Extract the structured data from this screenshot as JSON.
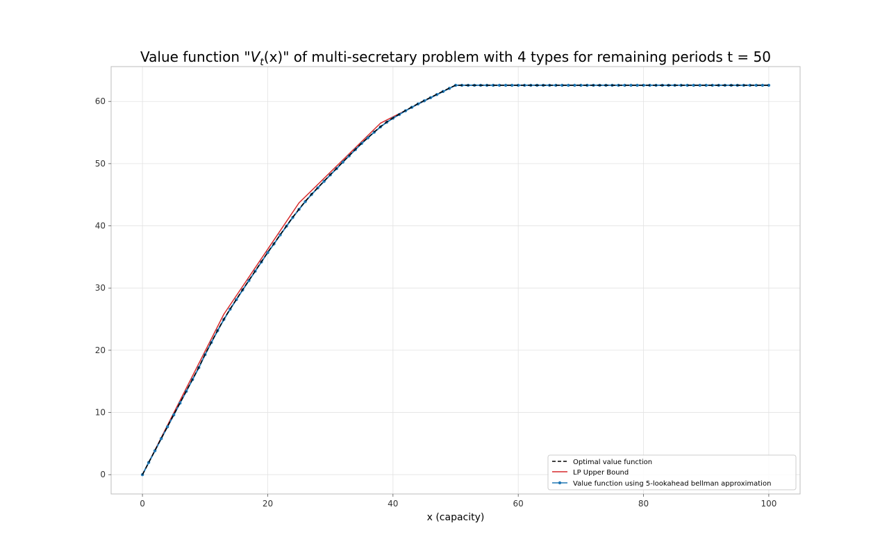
{
  "chart_data": {
    "type": "line",
    "title_parts": {
      "prefix": "Value function \"",
      "var": "V",
      "sub": "t",
      "arg": "(x)",
      "suffix": "\" of multi-secretary problem with 4 types for remaining periods t = 50"
    },
    "xlabel": "x (capacity)",
    "ylabel": "",
    "xlim": [
      -5,
      105
    ],
    "ylim": [
      -3.1,
      65.6
    ],
    "xticks": [
      0,
      20,
      40,
      60,
      80,
      100
    ],
    "yticks": [
      0,
      10,
      20,
      30,
      40,
      50,
      60
    ],
    "grid": true,
    "legend_position": "lower-right",
    "colors": {
      "optimal": "#000000",
      "lp": "#d62728",
      "lookahead": "#1f77b4"
    },
    "series": [
      {
        "name": "Optimal value function",
        "style": "dashed",
        "x": [
          0,
          1,
          2,
          3,
          4,
          5,
          6,
          7,
          8,
          9,
          10,
          11,
          12,
          13,
          14,
          15,
          16,
          17,
          18,
          19,
          20,
          21,
          22,
          23,
          24,
          25,
          26,
          27,
          28,
          29,
          30,
          31,
          32,
          33,
          34,
          35,
          36,
          37,
          38,
          39,
          40,
          41,
          42,
          43,
          44,
          45,
          46,
          47,
          48,
          49,
          50,
          51,
          52,
          53,
          54,
          55,
          56,
          57,
          58,
          59,
          60,
          61,
          62,
          63,
          64,
          65,
          66,
          67,
          68,
          69,
          70,
          71,
          72,
          73,
          74,
          75,
          76,
          77,
          78,
          79,
          80,
          81,
          82,
          83,
          84,
          85,
          86,
          87,
          88,
          89,
          90,
          91,
          92,
          93,
          94,
          95,
          96,
          97,
          98,
          99,
          100
        ],
        "values": [
          0,
          1.95,
          3.9,
          5.82,
          7.74,
          9.65,
          11.55,
          13.45,
          15.35,
          17.25,
          19.35,
          21.3,
          23.2,
          25.0,
          26.65,
          28.2,
          29.75,
          31.25,
          32.75,
          34.25,
          35.75,
          37.15,
          38.6,
          40.0,
          41.4,
          42.7,
          43.95,
          45.1,
          46.15,
          47.2,
          48.25,
          49.25,
          50.3,
          51.3,
          52.3,
          53.3,
          54.2,
          55.1,
          55.95,
          56.7,
          57.35,
          57.95,
          58.55,
          59.1,
          59.65,
          60.15,
          60.65,
          61.15,
          61.65,
          62.15,
          62.6,
          62.6,
          62.6,
          62.6,
          62.6,
          62.6,
          62.6,
          62.6,
          62.6,
          62.6,
          62.6,
          62.6,
          62.6,
          62.6,
          62.6,
          62.6,
          62.6,
          62.6,
          62.6,
          62.6,
          62.6,
          62.6,
          62.6,
          62.6,
          62.6,
          62.6,
          62.6,
          62.6,
          62.6,
          62.6,
          62.6,
          62.6,
          62.6,
          62.6,
          62.6,
          62.6,
          62.6,
          62.6,
          62.6,
          62.6,
          62.6,
          62.6,
          62.6,
          62.6,
          62.6,
          62.6,
          62.6,
          62.6,
          62.6,
          62.6,
          62.6
        ]
      },
      {
        "name": "LP Upper Bound",
        "style": "solid",
        "x": [
          0,
          13,
          25,
          38,
          50,
          100
        ],
        "values": [
          0,
          25.8,
          43.7,
          56.5,
          62.6,
          62.6
        ]
      },
      {
        "name": "Value function using 5-lookahead bellman approximation",
        "style": "solid-markers",
        "x": [
          0,
          1,
          2,
          3,
          4,
          5,
          6,
          7,
          8,
          9,
          10,
          11,
          12,
          13,
          14,
          15,
          16,
          17,
          18,
          19,
          20,
          21,
          22,
          23,
          24,
          25,
          26,
          27,
          28,
          29,
          30,
          31,
          32,
          33,
          34,
          35,
          36,
          37,
          38,
          39,
          40,
          41,
          42,
          43,
          44,
          45,
          46,
          47,
          48,
          49,
          50,
          51,
          52,
          53,
          54,
          55,
          56,
          57,
          58,
          59,
          60,
          61,
          62,
          63,
          64,
          65,
          66,
          67,
          68,
          69,
          70,
          71,
          72,
          73,
          74,
          75,
          76,
          77,
          78,
          79,
          80,
          81,
          82,
          83,
          84,
          85,
          86,
          87,
          88,
          89,
          90,
          91,
          92,
          93,
          94,
          95,
          96,
          97,
          98,
          99,
          100
        ],
        "values": [
          0,
          1.95,
          3.85,
          5.8,
          7.7,
          9.6,
          11.5,
          13.4,
          15.3,
          17.2,
          19.3,
          21.25,
          23.15,
          24.95,
          26.6,
          28.15,
          29.7,
          31.2,
          32.7,
          34.2,
          35.7,
          37.1,
          38.55,
          39.95,
          41.35,
          42.65,
          43.9,
          45.05,
          46.1,
          47.15,
          48.2,
          49.2,
          50.25,
          51.25,
          52.25,
          53.25,
          54.15,
          55.05,
          55.9,
          56.65,
          57.3,
          57.9,
          58.5,
          59.05,
          59.6,
          60.1,
          60.6,
          61.1,
          61.6,
          62.1,
          62.6,
          62.6,
          62.6,
          62.6,
          62.6,
          62.6,
          62.6,
          62.6,
          62.6,
          62.6,
          62.6,
          62.6,
          62.6,
          62.6,
          62.6,
          62.6,
          62.6,
          62.6,
          62.6,
          62.6,
          62.6,
          62.6,
          62.6,
          62.6,
          62.6,
          62.6,
          62.6,
          62.6,
          62.6,
          62.6,
          62.6,
          62.6,
          62.6,
          62.6,
          62.6,
          62.6,
          62.6,
          62.6,
          62.6,
          62.6,
          62.6,
          62.6,
          62.6,
          62.6,
          62.6,
          62.6,
          62.6,
          62.6,
          62.6,
          62.6,
          62.6
        ]
      }
    ]
  }
}
